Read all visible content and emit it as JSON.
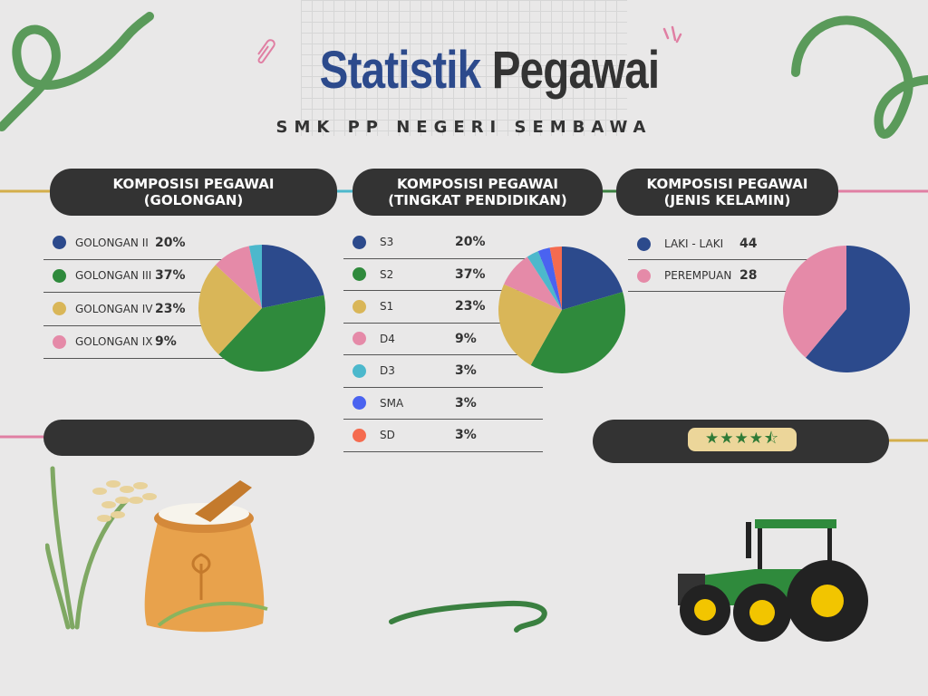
{
  "header": {
    "title_part1": "Statistik",
    "title_part2": "Pegawai",
    "subtitle": "SMK PP NEGERI SEMBAWA"
  },
  "chart_data": [
    {
      "type": "pie",
      "title": "KOMPOSISI PEGAWAI (GOLONGAN)",
      "title_line1": "KOMPOSISI PEGAWAI",
      "title_line2": "(GOLONGAN)",
      "categories": [
        "GOLONGAN II",
        "GOLONGAN III",
        "GOLONGAN IV",
        "GOLONGAN IX"
      ],
      "values": [
        20,
        37,
        23,
        9
      ],
      "value_labels": [
        "20%",
        "37%",
        "23%",
        "9%"
      ],
      "colors": [
        "#2c4a8c",
        "#2f8a3c",
        "#d9b658",
        "#e58aa8"
      ],
      "hidden_slices": [
        {
          "value": 3,
          "color": "#4cb8cc"
        }
      ]
    },
    {
      "type": "pie",
      "title": "KOMPOSISI PEGAWAI (TINGKAT PENDIDIKAN)",
      "title_line1": "KOMPOSISI PEGAWAI",
      "title_line2": "(TINGKAT PENDIDIKAN)",
      "categories": [
        "S3",
        "S2",
        "S1",
        "D4",
        "D3",
        "SMA",
        "SD"
      ],
      "values": [
        20,
        37,
        23,
        9,
        3,
        3,
        3
      ],
      "value_labels": [
        "20%",
        "37%",
        "23%",
        "9%",
        "3%",
        "3%",
        "3%"
      ],
      "colors": [
        "#2c4a8c",
        "#2f8a3c",
        "#d9b658",
        "#e58aa8",
        "#4cb8cc",
        "#4a63f0",
        "#f56b4f"
      ]
    },
    {
      "type": "pie",
      "title": "KOMPOSISI PEGAWAI (JENIS KELAMIN)",
      "title_line1": "KOMPOSISI PEGAWAI",
      "title_line2": "(JENIS KELAMIN)",
      "categories": [
        "LAKI - LAKI",
        "PEREMPUAN"
      ],
      "values": [
        44,
        28
      ],
      "value_labels": [
        "44",
        "28"
      ],
      "colors": [
        "#2c4a8c",
        "#e58aa8"
      ]
    }
  ],
  "rating": {
    "stars": 4.5,
    "max": 5,
    "star_color": "#2f7a36",
    "badge_color": "#ecd69a"
  },
  "colors": {
    "dark": "#333333",
    "blue": "#2c4a8c",
    "green": "#5a9a5a",
    "pink": "#e07fa3",
    "gold": "#d4ae4a",
    "teal": "#4cb8cc"
  }
}
